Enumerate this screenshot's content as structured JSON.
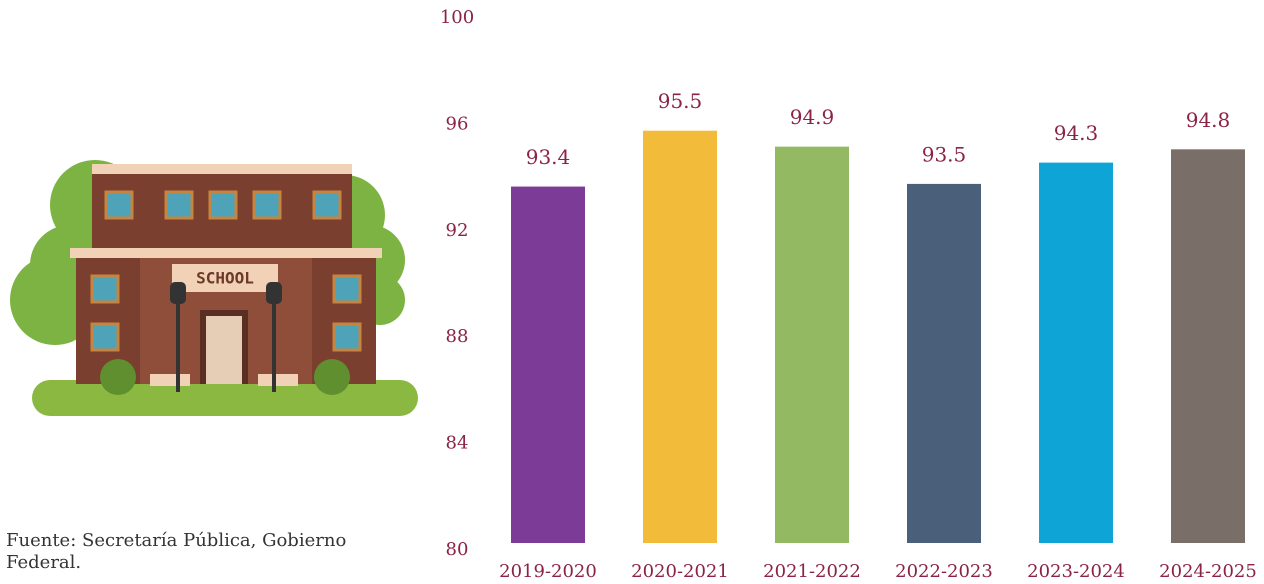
{
  "chart_data": {
    "type": "bar",
    "source": "Fuente: Secretaría Pública, Gobierno Federal.",
    "categories": [
      "2019-2020",
      "2020-2021",
      "2021-2022",
      "2022-2023",
      "2023-2024",
      "2024-2025"
    ],
    "values": [
      93.4,
      95.5,
      94.9,
      93.5,
      94.3,
      94.8
    ],
    "colors": [
      "#7b3b96",
      "#f2bb3a",
      "#93ba62",
      "#4a5f7a",
      "#0ea5d6",
      "#7a6e69"
    ],
    "ylim": [
      80,
      100
    ],
    "yticks": [
      80,
      84,
      88,
      92,
      96,
      100
    ],
    "grid": false
  }
}
